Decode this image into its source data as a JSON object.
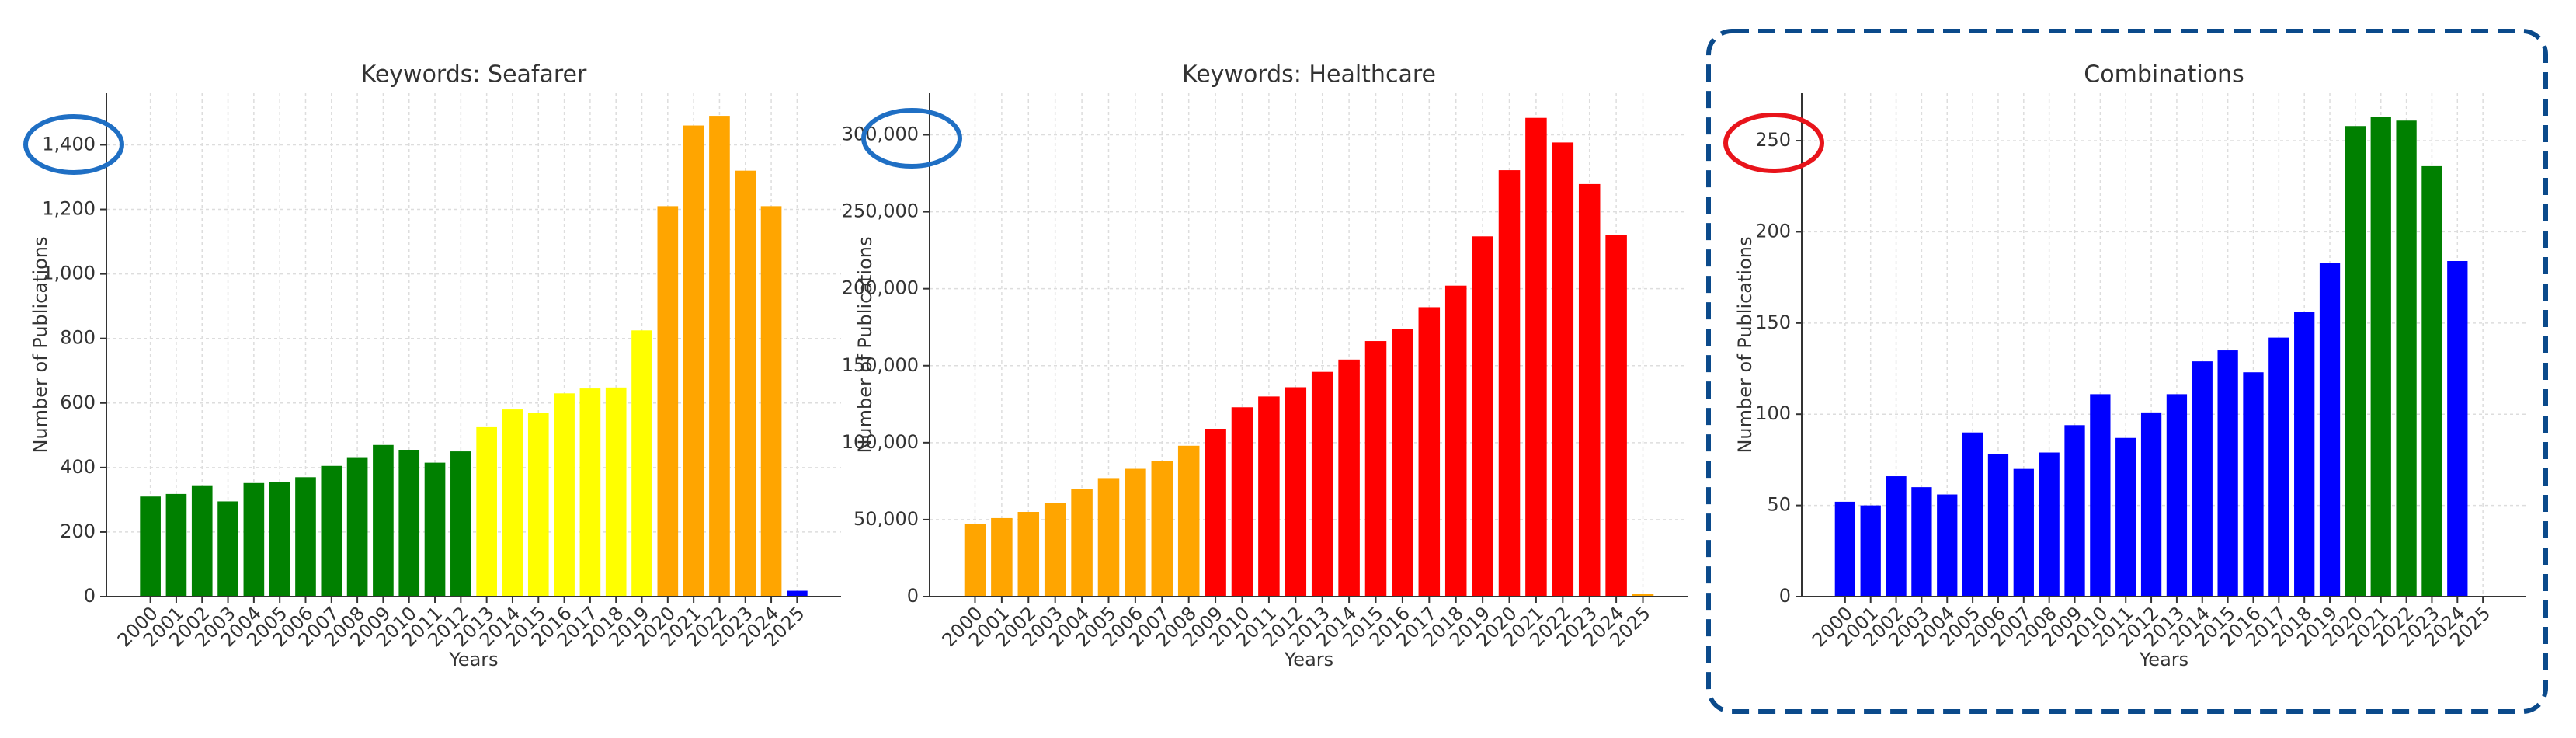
{
  "chart_data": [
    {
      "type": "bar",
      "title": "Keywords: Seafarer",
      "x_label": "Years",
      "y_label": "Number of Publications",
      "categories": [
        "2000",
        "2001",
        "2002",
        "2003",
        "2004",
        "2005",
        "2006",
        "2007",
        "2008",
        "2009",
        "2010",
        "2011",
        "2012",
        "2013",
        "2014",
        "2015",
        "2016",
        "2017",
        "2018",
        "2019",
        "2020",
        "2021",
        "2022",
        "2023",
        "2024",
        "2025"
      ],
      "values": [
        310,
        318,
        345,
        295,
        352,
        355,
        370,
        405,
        432,
        470,
        455,
        415,
        450,
        525,
        580,
        570,
        630,
        645,
        648,
        825,
        1210,
        1460,
        1490,
        1320,
        1210,
        18
      ],
      "colors": [
        "#008000",
        "#008000",
        "#008000",
        "#008000",
        "#008000",
        "#008000",
        "#008000",
        "#008000",
        "#008000",
        "#008000",
        "#008000",
        "#008000",
        "#008000",
        "#ffff00",
        "#ffff00",
        "#ffff00",
        "#ffff00",
        "#ffff00",
        "#ffff00",
        "#ffff00",
        "#ffa500",
        "#ffa500",
        "#ffa500",
        "#ffa500",
        "#ffa500",
        "#0000ff"
      ],
      "ylim": [
        0,
        1560
      ],
      "yticks": [
        0,
        200,
        400,
        600,
        800,
        {
          "value": 1000,
          "label": "1,000"
        },
        {
          "value": 1200,
          "label": "1,200"
        },
        {
          "value": 1400,
          "label": "1,400"
        }
      ],
      "grid": true
    },
    {
      "type": "bar",
      "title": "Keywords: Healthcare",
      "x_label": "Years",
      "y_label": "Number of Publications",
      "categories": [
        "2000",
        "2001",
        "2002",
        "2003",
        "2004",
        "2005",
        "2006",
        "2007",
        "2008",
        "2009",
        "2010",
        "2011",
        "2012",
        "2013",
        "2014",
        "2015",
        "2016",
        "2017",
        "2018",
        "2019",
        "2020",
        "2021",
        "2022",
        "2023",
        "2024",
        "2025"
      ],
      "values": [
        47000,
        51000,
        55000,
        61000,
        70000,
        77000,
        83000,
        88000,
        98000,
        109000,
        123000,
        130000,
        136000,
        146000,
        154000,
        166000,
        174000,
        188000,
        202000,
        234000,
        277000,
        311000,
        295000,
        268000,
        235000,
        2000
      ],
      "colors": [
        "#ffa500",
        "#ffa500",
        "#ffa500",
        "#ffa500",
        "#ffa500",
        "#ffa500",
        "#ffa500",
        "#ffa500",
        "#ffa500",
        "#ff0000",
        "#ff0000",
        "#ff0000",
        "#ff0000",
        "#ff0000",
        "#ff0000",
        "#ff0000",
        "#ff0000",
        "#ff0000",
        "#ff0000",
        "#ff0000",
        "#ff0000",
        "#ff0000",
        "#ff0000",
        "#ff0000",
        "#ff0000",
        "#ffa500"
      ],
      "ylim": [
        0,
        327000
      ],
      "yticks": [
        0,
        {
          "value": 50000,
          "label": "50,000"
        },
        {
          "value": 100000,
          "label": "100,000"
        },
        {
          "value": 150000,
          "label": "150,000"
        },
        {
          "value": 200000,
          "label": "200,000"
        },
        {
          "value": 250000,
          "label": "250,000"
        },
        {
          "value": 300000,
          "label": "300,000"
        }
      ],
      "grid": true
    },
    {
      "type": "bar",
      "title": "Combinations",
      "x_label": "Years",
      "y_label": "Number of Publications",
      "categories": [
        "2000",
        "2001",
        "2002",
        "2003",
        "2004",
        "2005",
        "2006",
        "2007",
        "2008",
        "2009",
        "2010",
        "2011",
        "2012",
        "2013",
        "2014",
        "2015",
        "2016",
        "2017",
        "2018",
        "2019",
        "2020",
        "2021",
        "2022",
        "2023",
        "2024",
        "2025"
      ],
      "values": [
        52,
        50,
        66,
        60,
        56,
        90,
        78,
        70,
        79,
        94,
        111,
        87,
        101,
        111,
        129,
        135,
        123,
        142,
        156,
        183,
        258,
        263,
        261,
        236,
        184,
        0
      ],
      "colors": [
        "#0000ff",
        "#0000ff",
        "#0000ff",
        "#0000ff",
        "#0000ff",
        "#0000ff",
        "#0000ff",
        "#0000ff",
        "#0000ff",
        "#0000ff",
        "#0000ff",
        "#0000ff",
        "#0000ff",
        "#0000ff",
        "#0000ff",
        "#0000ff",
        "#0000ff",
        "#0000ff",
        "#0000ff",
        "#0000ff",
        "#008000",
        "#008000",
        "#008000",
        "#008000",
        "#0000ff",
        "#0000ff"
      ],
      "ylim": [
        0,
        276
      ],
      "yticks": [
        0,
        50,
        100,
        150,
        200,
        250
      ],
      "grid": true
    }
  ]
}
